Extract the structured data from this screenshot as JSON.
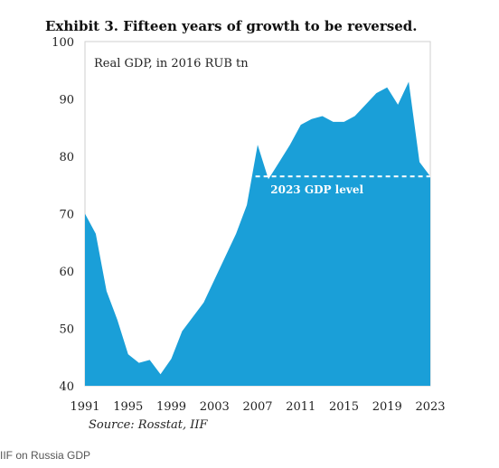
{
  "chart_data": {
    "type": "area",
    "title": "Exhibit 3. Fifteen years of growth to be reversed.",
    "inner_label": "Real GDP, in 2016 RUB tn",
    "source": "Source: Rosstat, IIF",
    "ylim": [
      40,
      100
    ],
    "yticks": [
      "40",
      "50",
      "60",
      "70",
      "80",
      "90",
      "100"
    ],
    "xlim": [
      1991,
      2023
    ],
    "xticks": [
      "1991",
      "1995",
      "1999",
      "2003",
      "2007",
      "2011",
      "2015",
      "2019",
      "2023"
    ],
    "color": "#1a9fd8",
    "reference_line": {
      "label": "2023 GDP level",
      "value": 76.5,
      "x_start": 2006.8,
      "x_end": 2023
    },
    "x": [
      1991,
      1992,
      1993,
      1994,
      1995,
      1996,
      1997,
      1998,
      1999,
      2000,
      2001,
      2002,
      2003,
      2004,
      2005,
      2006,
      2007,
      2008,
      2009,
      2010,
      2011,
      2012,
      2013,
      2014,
      2015,
      2016,
      2017,
      2018,
      2019,
      2020,
      2021,
      2022,
      2023
    ],
    "values": [
      70,
      66.5,
      56.5,
      51.5,
      45.5,
      44,
      44.5,
      42,
      44.7,
      49.5,
      52,
      54.5,
      58.5,
      62.5,
      66.5,
      71.5,
      82,
      76,
      79,
      82,
      85.5,
      86.5,
      87,
      86,
      86,
      87,
      89,
      91,
      92,
      89,
      93,
      79,
      76.5
    ]
  },
  "caption": "IIF on Russia GDP"
}
